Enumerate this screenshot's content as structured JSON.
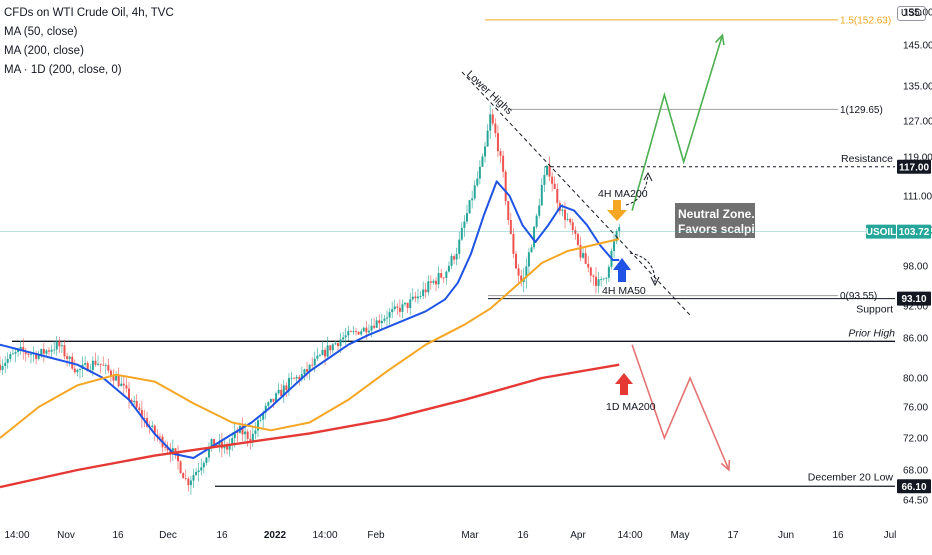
{
  "legend": {
    "title": "CFDs on WTI Crude Oil, 4h, TVC",
    "lines": [
      "MA (50, close)",
      "MA (200, close)",
      "MA · 1D (200, close, 0)"
    ]
  },
  "currency": "USD",
  "colors": {
    "ma50": "#1e53e5",
    "ma200": "#f5a623",
    "ma1d200": "#e53935",
    "candle_up": "#26a69a",
    "candle_down": "#ef5350",
    "bull_path": "#4caf50",
    "bear_path": "#e57373",
    "fib_15": "#f5a623",
    "zone_box": "#707070",
    "usoil_tag": "#26a69a",
    "black_tag": "#131722"
  },
  "chart_data": {
    "type": "candlestick",
    "symbol": "USOIL",
    "timeframe": "4h",
    "y_ticks": [
      64.5,
      68.0,
      72.0,
      76.0,
      80.0,
      86.0,
      92.0,
      98.0,
      104.0,
      111.0,
      119.0,
      127.0,
      135.0,
      145.0,
      155.0
    ],
    "y_tick_labels": [
      "64.50",
      "68.00",
      "72.00",
      "76.00",
      "80.00",
      "86.00",
      "92.00",
      "98.00",
      "104.00",
      "111.00",
      "119.00",
      "127.00",
      "135.00",
      "145.00",
      "155.00"
    ],
    "x_ticks": [
      {
        "label": "14:00",
        "bold": false
      },
      {
        "label": "Nov",
        "bold": false
      },
      {
        "label": "16",
        "bold": false
      },
      {
        "label": "Dec",
        "bold": false
      },
      {
        "label": "16",
        "bold": false
      },
      {
        "label": "2022",
        "bold": true
      },
      {
        "label": "14:00",
        "bold": false
      },
      {
        "label": "Feb",
        "bold": false
      },
      {
        "label": "Mar",
        "bold": false
      },
      {
        "label": "16",
        "bold": false
      },
      {
        "label": "Apr",
        "bold": false
      },
      {
        "label": "14:00",
        "bold": false
      },
      {
        "label": "May",
        "bold": false
      },
      {
        "label": "17",
        "bold": false
      },
      {
        "label": "Jun",
        "bold": false
      },
      {
        "label": "16",
        "bold": false
      },
      {
        "label": "Jul",
        "bold": false
      }
    ],
    "price_path": [
      [
        0,
        82.0
      ],
      [
        3,
        84.0
      ],
      [
        6,
        83.5
      ],
      [
        9,
        85.0
      ],
      [
        12,
        81.0
      ],
      [
        15,
        82.5
      ],
      [
        18,
        80.0
      ],
      [
        21,
        76.0
      ],
      [
        24,
        72.5
      ],
      [
        27,
        70.0
      ],
      [
        29,
        66.5
      ],
      [
        31,
        68.5
      ],
      [
        33,
        71.5
      ],
      [
        35,
        70.5
      ],
      [
        37,
        73.0
      ],
      [
        39,
        72.0
      ],
      [
        41,
        75.5
      ],
      [
        43,
        77.5
      ],
      [
        45,
        79.5
      ],
      [
        47,
        80.5
      ],
      [
        49,
        82.5
      ],
      [
        51,
        84.5
      ],
      [
        53,
        86.0
      ],
      [
        55,
        87.0
      ],
      [
        57,
        88.0
      ],
      [
        59,
        89.5
      ],
      [
        61,
        91.0
      ],
      [
        63,
        92.0
      ],
      [
        65,
        93.5
      ],
      [
        67,
        95.5
      ],
      [
        69,
        97.0
      ],
      [
        71,
        101.0
      ],
      [
        73,
        110.0
      ],
      [
        75,
        119.0
      ],
      [
        76,
        128.0
      ],
      [
        77,
        123.0
      ],
      [
        78,
        115.0
      ],
      [
        79,
        104.0
      ],
      [
        80,
        98.0
      ],
      [
        81,
        95.0
      ],
      [
        82,
        100.0
      ],
      [
        83,
        105.0
      ],
      [
        84,
        113.0
      ],
      [
        85,
        117.0
      ],
      [
        86,
        112.0
      ],
      [
        87,
        108.0
      ],
      [
        88,
        106.0
      ],
      [
        89,
        103.0
      ],
      [
        90,
        100.0
      ],
      [
        91,
        98.0
      ],
      [
        92,
        96.5
      ],
      [
        93,
        95.0
      ],
      [
        94,
        97.0
      ],
      [
        95,
        101.0
      ],
      [
        96,
        104.5
      ]
    ],
    "series": [
      {
        "name": "MA (50, close)",
        "points": [
          [
            0,
            85.0
          ],
          [
            4,
            84.0
          ],
          [
            8,
            83.0
          ],
          [
            12,
            82.0
          ],
          [
            16,
            80.0
          ],
          [
            20,
            77.0
          ],
          [
            24,
            72.5
          ],
          [
            27,
            70.0
          ],
          [
            30,
            69.5
          ],
          [
            33,
            71.0
          ],
          [
            36,
            72.5
          ],
          [
            39,
            74.0
          ],
          [
            42,
            76.0
          ],
          [
            45,
            78.5
          ],
          [
            48,
            81.0
          ],
          [
            51,
            83.0
          ],
          [
            54,
            85.0
          ],
          [
            57,
            86.5
          ],
          [
            60,
            88.0
          ],
          [
            63,
            89.5
          ],
          [
            66,
            91.0
          ],
          [
            69,
            93.0
          ],
          [
            71,
            95.5
          ],
          [
            73,
            100.0
          ],
          [
            75,
            107.0
          ],
          [
            77,
            114.0
          ],
          [
            79,
            111.0
          ],
          [
            81,
            105.0
          ],
          [
            83,
            102.0
          ],
          [
            85,
            105.0
          ],
          [
            87,
            109.0
          ],
          [
            89,
            108.0
          ],
          [
            91,
            105.0
          ],
          [
            93,
            101.5
          ],
          [
            95,
            99.0
          ],
          [
            96,
            99.0
          ]
        ]
      },
      {
        "name": "MA (200, close)",
        "points": [
          [
            0,
            72.0
          ],
          [
            6,
            76.0
          ],
          [
            12,
            79.0
          ],
          [
            18,
            80.5
          ],
          [
            24,
            79.5
          ],
          [
            30,
            76.5
          ],
          [
            36,
            74.0
          ],
          [
            42,
            73.0
          ],
          [
            48,
            74.0
          ],
          [
            54,
            77.0
          ],
          [
            60,
            81.0
          ],
          [
            66,
            85.0
          ],
          [
            72,
            88.5
          ],
          [
            76,
            91.5
          ],
          [
            80,
            95.0
          ],
          [
            84,
            98.5
          ],
          [
            88,
            100.5
          ],
          [
            92,
            101.5
          ],
          [
            96,
            102.5
          ]
        ]
      },
      {
        "name": "MA · 1D (200, close, 0)",
        "points": [
          [
            0,
            66.0
          ],
          [
            12,
            68.0
          ],
          [
            24,
            69.8
          ],
          [
            36,
            71.2
          ],
          [
            48,
            72.6
          ],
          [
            60,
            74.4
          ],
          [
            72,
            77.0
          ],
          [
            84,
            80.0
          ],
          [
            96,
            82.0
          ]
        ]
      }
    ],
    "levels": [
      {
        "name": "Prior High",
        "value": 85.5
      },
      {
        "name": "Resistance",
        "value": 117.0
      },
      {
        "name": "Support",
        "value": 93.1
      },
      {
        "name": "December 20 Low",
        "value": 66.1
      }
    ],
    "fib_levels": [
      {
        "label": "1.5(152.63)",
        "value": 152.63
      },
      {
        "label": "1(129.65)",
        "value": 129.65
      },
      {
        "label": "0(93.55)",
        "value": 93.55
      }
    ],
    "price_tags": [
      {
        "label": "117.00",
        "value": 117.0,
        "kind": "black"
      },
      {
        "label": "103.72",
        "value": 103.72,
        "kind": "usoil",
        "name": "USOIL"
      },
      {
        "label": "93.10",
        "value": 93.1,
        "kind": "black"
      },
      {
        "label": "66.10",
        "value": 66.1,
        "kind": "black"
      }
    ],
    "annotations": {
      "lower_highs": "Lower Highs",
      "ma200_4h": "4H MA200",
      "ma50_4h": "4H MA50",
      "ma200_1d": "1D MA200",
      "zone_line1": "Neutral Zone.",
      "zone_line2": "Favors scalping"
    },
    "bullish_path": [
      [
        98,
        108.0
      ],
      [
        103,
        133.0
      ],
      [
        106,
        118.0
      ],
      [
        112,
        148.0
      ]
    ],
    "bearish_path": [
      [
        98,
        85.0
      ],
      [
        103,
        72.0
      ],
      [
        107,
        80.0
      ],
      [
        113,
        68.0
      ]
    ]
  }
}
